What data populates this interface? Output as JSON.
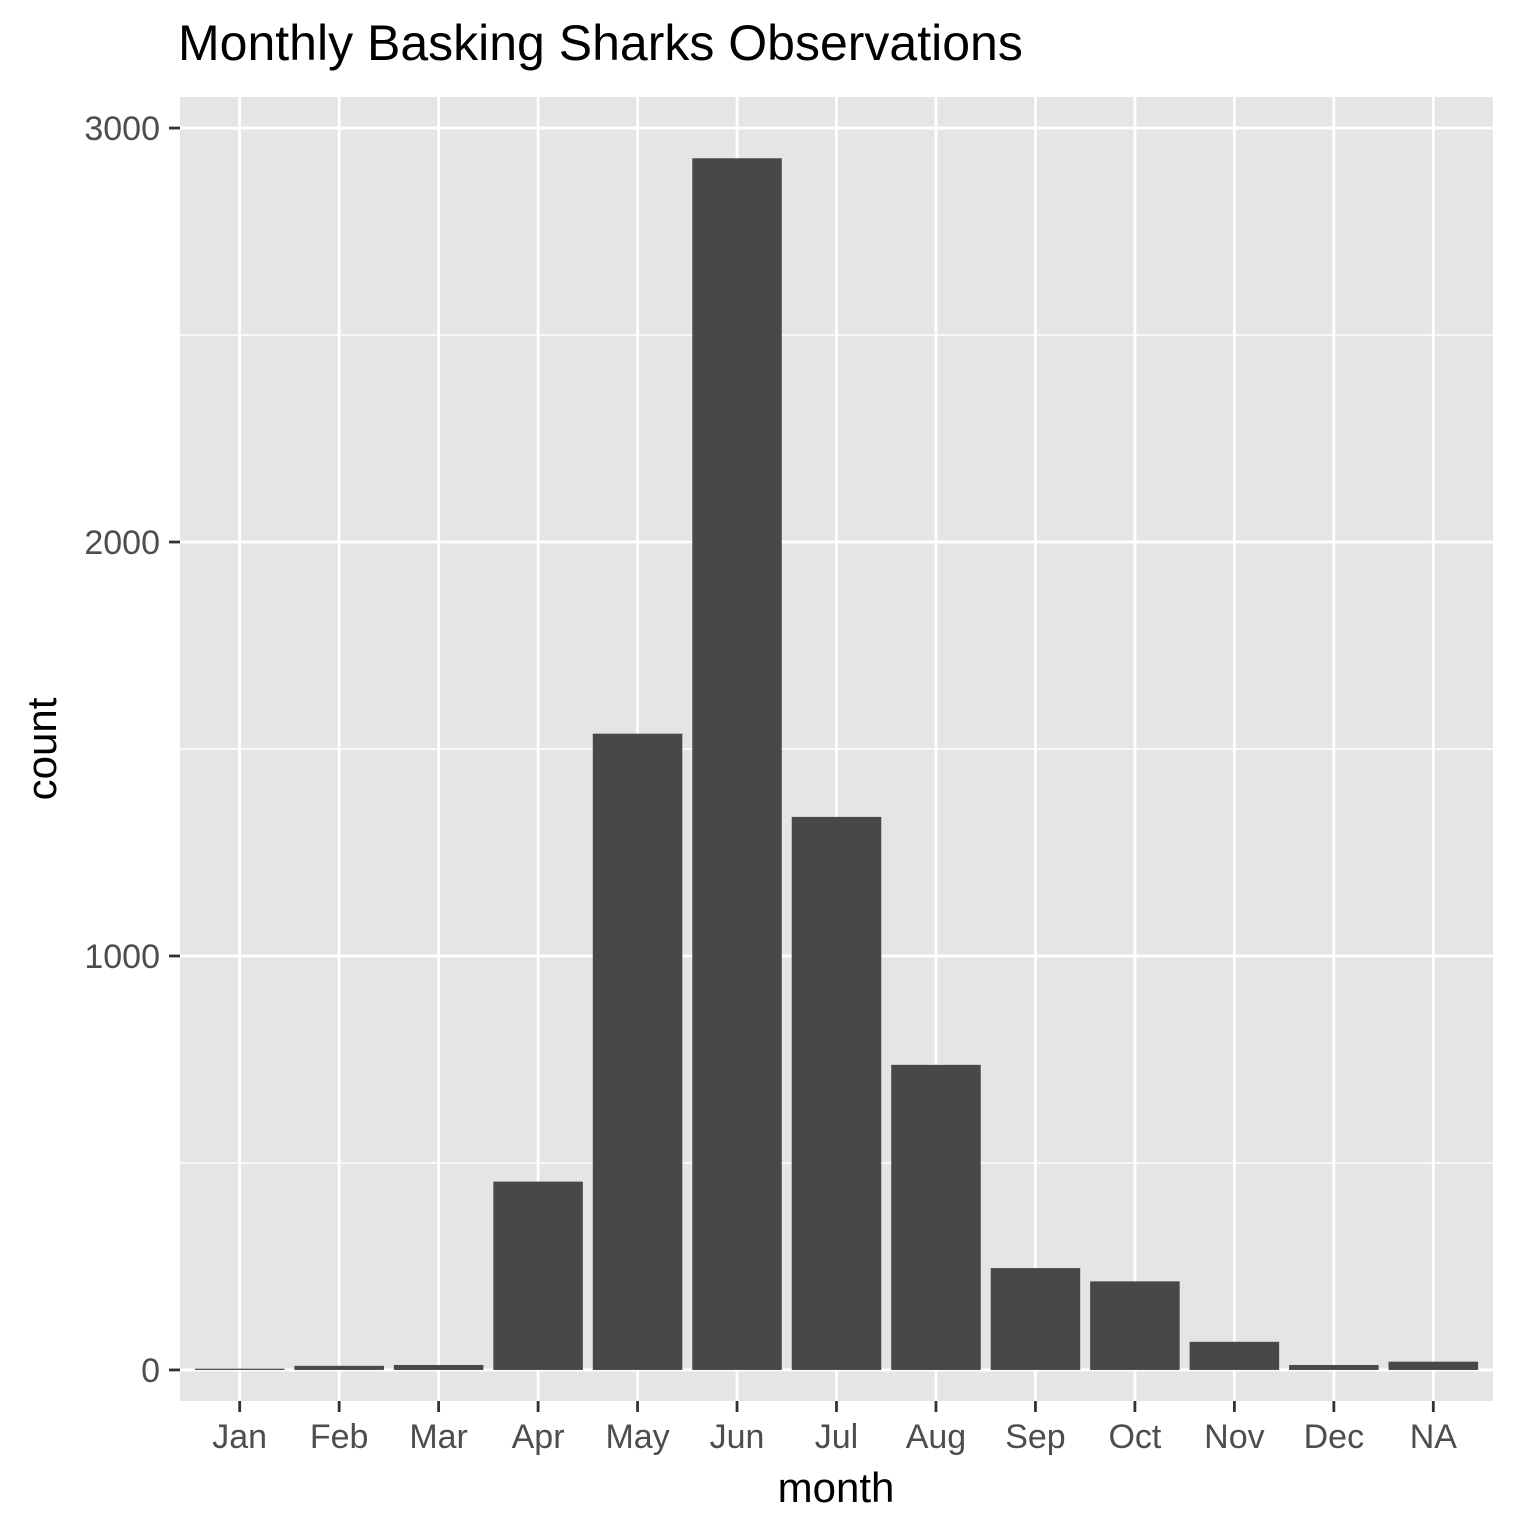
{
  "chart_data": {
    "type": "bar",
    "title": "Monthly Basking Sharks Observations",
    "xlabel": "month",
    "ylabel": "count",
    "categories": [
      "Jan",
      "Feb",
      "Mar",
      "Apr",
      "May",
      "Jun",
      "Jul",
      "Aug",
      "Sep",
      "Oct",
      "Nov",
      "Dec",
      "NA"
    ],
    "values": [
      3,
      10,
      12,
      455,
      1537,
      2927,
      1336,
      737,
      246,
      214,
      68,
      12,
      20
    ],
    "ylim": [
      -75,
      3075
    ],
    "yticks": [
      0,
      1000,
      2000,
      3000
    ],
    "grid": true,
    "colors": {
      "panel_background": "#e5e5e5",
      "gridline": "#ffffff",
      "bar_fill": "#484848",
      "tick_text": "#4d4d4d",
      "tick_mark": "#333333"
    }
  }
}
